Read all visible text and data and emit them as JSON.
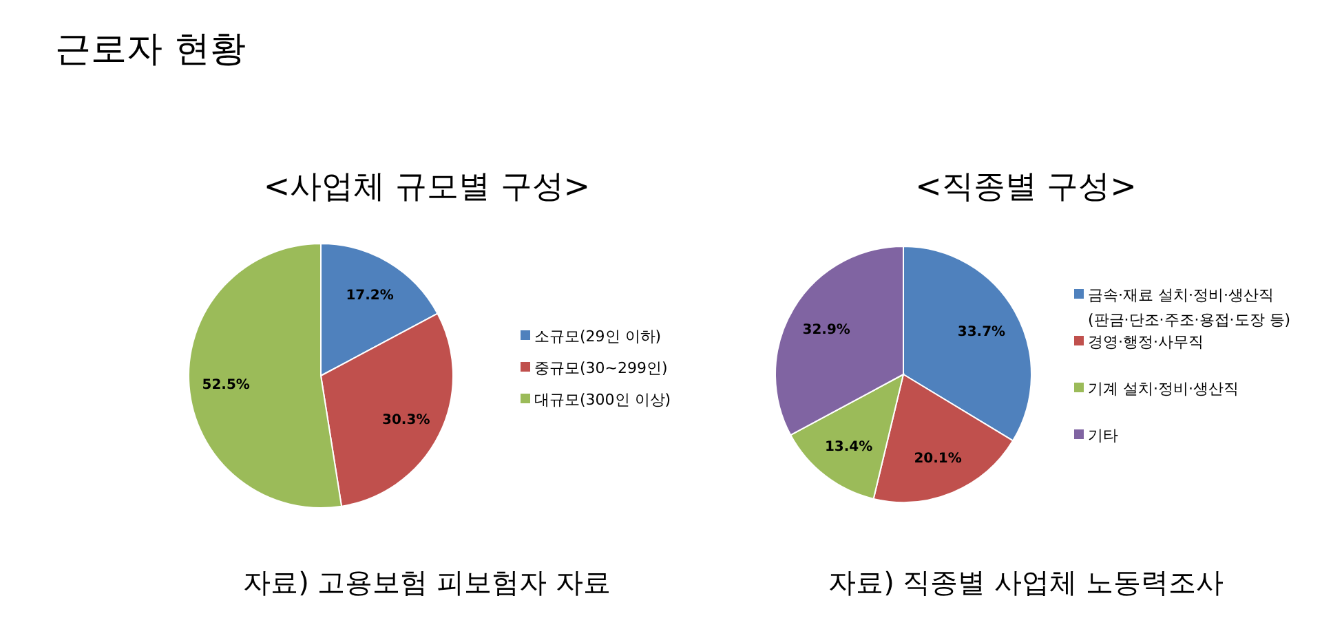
{
  "chart_data": [
    {
      "type": "pie",
      "title": "<사업체 규모별 구성>",
      "categories": [
        "소규모(29인 이하)",
        "중규모(30~299인)",
        "대규모(300인 이상)"
      ],
      "values": [
        17.2,
        30.3,
        52.5
      ],
      "value_labels": [
        "17.2%",
        "30.3%",
        "52.5%"
      ],
      "colors": [
        "#4f81bd",
        "#c0504d",
        "#9bbb59"
      ],
      "legend": "right",
      "annotations": [
        "근로자 현황",
        "자료) 고용보험 피보험자 자료"
      ]
    },
    {
      "type": "pie",
      "title": "<직종별 구성>",
      "categories": [
        "금속·재료 설치·정비·생산직\n(판금·단조·주조·용접·도장 등)",
        "경영·행정·사무직",
        "기계 설치·정비·생산직",
        "기타"
      ],
      "values": [
        33.7,
        20.1,
        13.4,
        32.9
      ],
      "value_labels": [
        "33.7%",
        "20.1%",
        "13.4%",
        "32.9%"
      ],
      "colors": [
        "#4f81bd",
        "#c0504d",
        "#9bbb59",
        "#8064a2"
      ],
      "legend": "right",
      "annotations": [
        "자료) 직종별 사업체 노동력조사"
      ]
    }
  ]
}
